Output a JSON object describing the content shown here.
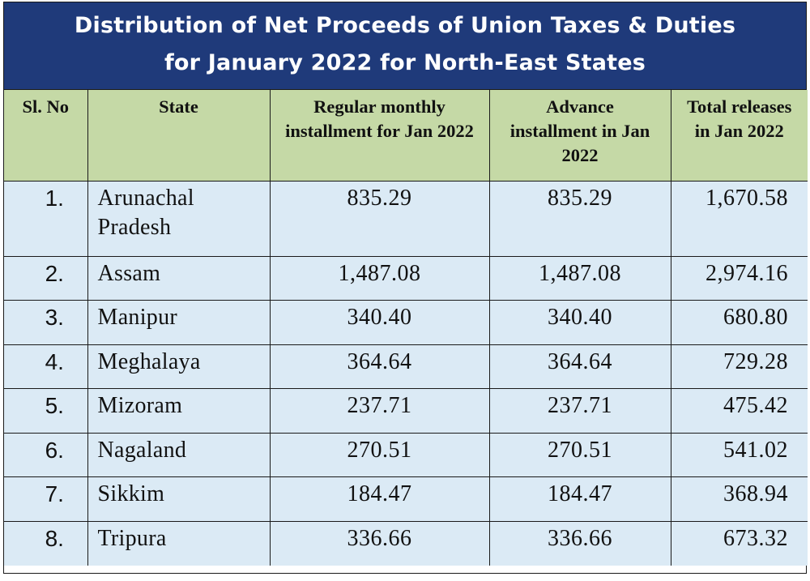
{
  "title": {
    "line1": "Distribution of Net Proceeds of Union Taxes & Duties",
    "line2": "for January 2022 for North-East States"
  },
  "headers": {
    "sl_no": "Sl. No",
    "state": "State",
    "regular": "Regular monthly installment for Jan 2022",
    "advance": "Advance installment in Jan 2022",
    "total": "Total releases in Jan 2022"
  },
  "rows": [
    {
      "sl": "1.",
      "state": "Arunachal Pradesh",
      "regular": "835.29",
      "advance": "835.29",
      "total": "1,670.58"
    },
    {
      "sl": "2.",
      "state": "Assam",
      "regular": "1,487.08",
      "advance": "1,487.08",
      "total": "2,974.16"
    },
    {
      "sl": "3.",
      "state": "Manipur",
      "regular": "340.40",
      "advance": "340.40",
      "total": "680.80"
    },
    {
      "sl": "4.",
      "state": "Meghalaya",
      "regular": "364.64",
      "advance": "364.64",
      "total": "729.28"
    },
    {
      "sl": "5.",
      "state": "Mizoram",
      "regular": "237.71",
      "advance": "237.71",
      "total": "475.42"
    },
    {
      "sl": "6.",
      "state": "Nagaland",
      "regular": "270.51",
      "advance": "270.51",
      "total": "541.02"
    },
    {
      "sl": "7.",
      "state": "Sikkim",
      "regular": "184.47",
      "advance": "184.47",
      "total": "368.94"
    },
    {
      "sl": "8.",
      "state": "Tripura",
      "regular": "336.66",
      "advance": "336.66",
      "total": "673.32"
    }
  ],
  "colors": {
    "title_background": "#1f3a7a",
    "header_background": "#c5d9a6",
    "row_background": "#dbeaf5"
  }
}
